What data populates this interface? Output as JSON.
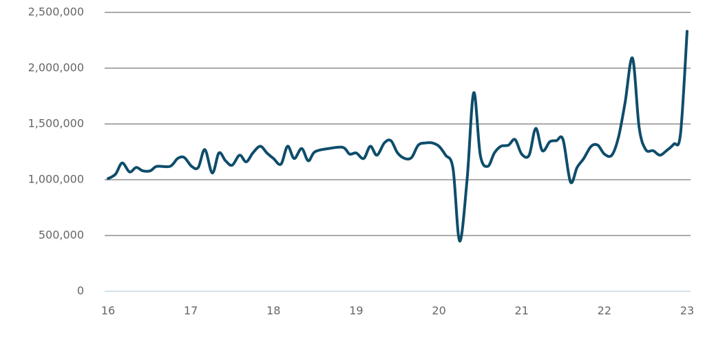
{
  "chart_data": {
    "type": "line",
    "x": [
      16.0,
      16.09,
      16.17,
      16.26,
      16.34,
      16.42,
      16.51,
      16.59,
      16.75,
      16.84,
      16.92,
      17.01,
      17.09,
      17.17,
      17.26,
      17.34,
      17.42,
      17.5,
      17.59,
      17.67,
      17.75,
      17.84,
      17.92,
      18.0,
      18.09,
      18.17,
      18.25,
      18.34,
      18.42,
      18.5,
      18.67,
      18.84,
      18.92,
      19.0,
      19.09,
      19.17,
      19.25,
      19.34,
      19.42,
      19.5,
      19.59,
      19.67,
      19.75,
      19.84,
      19.92,
      20.0,
      20.08,
      20.17,
      20.25,
      20.34,
      20.42,
      20.5,
      20.59,
      20.67,
      20.75,
      20.84,
      20.92,
      21.0,
      21.09,
      21.17,
      21.25,
      21.34,
      21.42,
      21.5,
      21.59,
      21.67,
      21.75,
      21.84,
      21.92,
      22.0,
      22.09,
      22.17,
      22.25,
      22.34,
      22.42,
      22.5,
      22.59,
      22.67,
      22.75,
      22.84,
      22.92,
      23.0
    ],
    "series": [
      {
        "color": "#0e4d6b",
        "values": [
          1010000,
          1050000,
          1150000,
          1070000,
          1110000,
          1080000,
          1080000,
          1120000,
          1120000,
          1190000,
          1200000,
          1120000,
          1110000,
          1270000,
          1060000,
          1240000,
          1170000,
          1130000,
          1220000,
          1160000,
          1240000,
          1300000,
          1240000,
          1190000,
          1140000,
          1300000,
          1190000,
          1280000,
          1170000,
          1250000,
          1280000,
          1290000,
          1230000,
          1240000,
          1190000,
          1300000,
          1220000,
          1330000,
          1350000,
          1240000,
          1190000,
          1200000,
          1310000,
          1330000,
          1330000,
          1300000,
          1220000,
          1100000,
          450000,
          1000000,
          1780000,
          1220000,
          1120000,
          1240000,
          1300000,
          1310000,
          1360000,
          1230000,
          1220000,
          1460000,
          1260000,
          1340000,
          1350000,
          1360000,
          980000,
          1110000,
          1190000,
          1300000,
          1310000,
          1230000,
          1220000,
          1380000,
          1690000,
          2090000,
          1470000,
          1270000,
          1260000,
          1220000,
          1260000,
          1320000,
          1410000,
          2330000
        ]
      }
    ],
    "xlim": [
      16,
      23
    ],
    "xticks": [
      16,
      17,
      18,
      19,
      20,
      21,
      22,
      23
    ],
    "ylim": [
      0,
      2500000
    ],
    "yticks": [
      0,
      {
        "value": 500000,
        "label": "500,000"
      },
      {
        "value": 1000000,
        "label": "1,000,000"
      },
      {
        "value": 1500000,
        "label": "1,500,000"
      },
      {
        "value": 2000000,
        "label": "2,000,000"
      },
      {
        "value": 2500000,
        "label": "2,500,000"
      }
    ],
    "grid": true
  }
}
